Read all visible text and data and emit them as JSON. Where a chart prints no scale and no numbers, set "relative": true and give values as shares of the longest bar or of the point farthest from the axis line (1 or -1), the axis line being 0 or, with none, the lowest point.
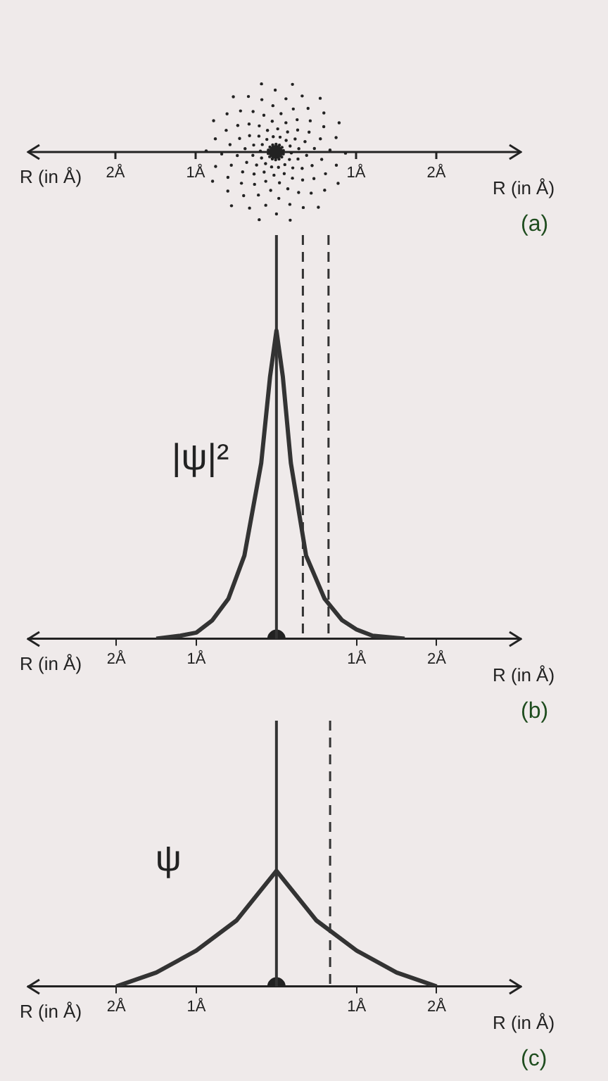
{
  "chart_data": [
    {
      "type": "other",
      "xlabel": "R (in Å)",
      "annotations": [
        "R (in Å)",
        "(a)",
        "2Å",
        "1Å",
        "1Å",
        "2Å"
      ]
    },
    {
      "type": "line",
      "relative": true,
      "xlim": [
        -3.1,
        3.05
      ],
      "xticks": [
        {
          "value": -2,
          "label": "2Å"
        },
        {
          "value": -1,
          "label": "1Å"
        },
        {
          "value": 1,
          "label": "1Å"
        },
        {
          "value": 2,
          "label": "2Å"
        }
      ],
      "xlabel": "R (in Å)",
      "ylabel": "|ψ|²",
      "annotations": [
        "R (in Å)",
        "(b)"
      ],
      "marker": "none",
      "series": [
        {
          "color": "#333333",
          "x": [
            -1.5,
            -1.2,
            -1,
            -0.8,
            -0.6,
            -0.4,
            -0.19,
            -0.08,
            0,
            0.08,
            0.18,
            0.37,
            0.6,
            0.82,
            1,
            1.2,
            1.6
          ],
          "values": [
            0,
            0.01,
            0.02,
            0.06,
            0.13,
            0.27,
            0.57,
            0.85,
            1,
            0.85,
            0.57,
            0.27,
            0.13,
            0.06,
            0.03,
            0.01,
            0
          ]
        },
        {
          "type": "scatter",
          "marker": "circle",
          "color": "#222222",
          "x": [
            0
          ],
          "values": [
            0
          ]
        }
      ],
      "ref_lines": [
        {
          "axis": "x",
          "value": 0,
          "color": "#333333",
          "line_style": "solid"
        },
        {
          "axis": "x",
          "value": 0.33,
          "color": "#333333",
          "line_style": "dashed"
        },
        {
          "axis": "x",
          "value": 0.65,
          "color": "#333333",
          "line_style": "dashed"
        }
      ]
    },
    {
      "type": "line",
      "relative": true,
      "xlim": [
        -3.1,
        3.05
      ],
      "xticks": [
        {
          "value": -2,
          "label": "2Å"
        },
        {
          "value": -1,
          "label": "1Å"
        },
        {
          "value": 1,
          "label": "1Å"
        },
        {
          "value": 2,
          "label": "2Å"
        }
      ],
      "xlabel": "R (in Å)",
      "ylabel": "ψ",
      "annotations": [
        "R (in Å)",
        "(c)"
      ],
      "marker": "none",
      "series": [
        {
          "color": "#333333",
          "x": [
            -2,
            -1.5,
            -1,
            -0.5,
            0,
            0.5,
            1,
            1.5,
            2
          ],
          "values": [
            0,
            0.12,
            0.31,
            0.57,
            1,
            0.57,
            0.31,
            0.12,
            0
          ]
        },
        {
          "type": "scatter",
          "marker": "circle",
          "color": "#222222",
          "x": [
            0
          ],
          "values": [
            0
          ]
        }
      ],
      "ref_lines": [
        {
          "axis": "x",
          "value": 0,
          "color": "#333333",
          "line_style": "solid"
        },
        {
          "axis": "x",
          "value": 0.67,
          "color": "#333333",
          "line_style": "dashed"
        }
      ]
    }
  ]
}
